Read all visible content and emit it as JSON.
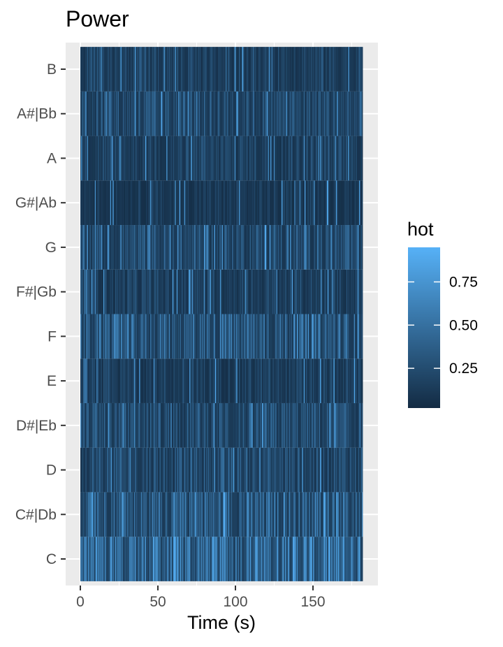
{
  "chart_data": {
    "type": "heatmap",
    "title": "Power",
    "xlabel": "Time (s)",
    "ylabel": "",
    "xlim": [
      0,
      182
    ],
    "x_ticks": [
      0,
      50,
      100,
      150
    ],
    "x_tick_labels": [
      "0",
      "50",
      "100",
      "150"
    ],
    "categories": [
      "C",
      "C#|Db",
      "D",
      "D#|Eb",
      "E",
      "F",
      "F#|Gb",
      "G",
      "G#|Ab",
      "A",
      "A#|Bb",
      "B"
    ],
    "time_range": [
      0,
      182
    ],
    "mean_intensity": {
      "C": 0.58,
      "C#|Db": 0.42,
      "D": 0.3,
      "D#|Eb": 0.3,
      "E": 0.18,
      "F": 0.4,
      "F#|Gb": 0.2,
      "G": 0.3,
      "G#|Ab": 0.14,
      "A": 0.22,
      "A#|Bb": 0.3,
      "B": 0.22
    },
    "legend": {
      "title": "hot",
      "position": "right",
      "ticks": [
        0.25,
        0.5,
        0.75
      ],
      "tick_labels": [
        "0.25",
        "0.50",
        "0.75"
      ],
      "range": [
        0.02,
        0.95
      ]
    },
    "colors": {
      "low": "#132B43",
      "high": "#56B1F7",
      "panel_background": "#EBEBEB",
      "grid": "#FFFFFF"
    },
    "grid": true
  }
}
